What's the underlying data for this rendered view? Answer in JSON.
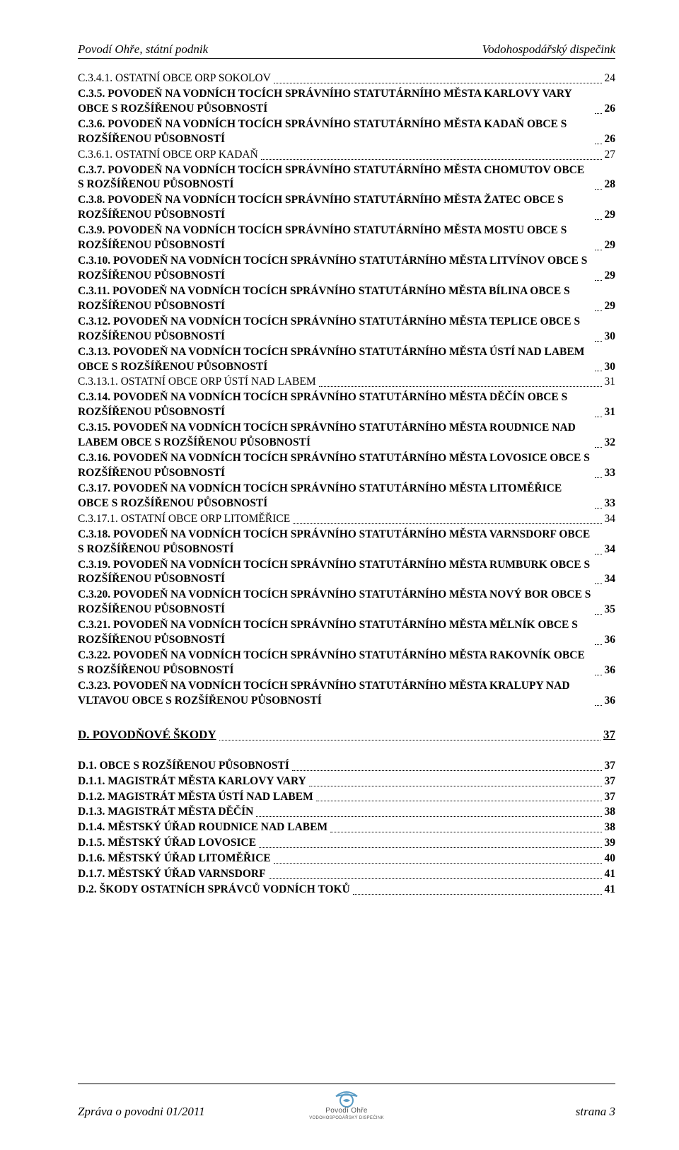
{
  "header": {
    "left": "Povodí Ohře, státní podnik",
    "right": "Vodohospodářský dispečink"
  },
  "footer": {
    "left": "Zpráva o povodni 01/2011",
    "right": "strana 3",
    "logo_color_main": "#5a9bc4",
    "logo_color_sub": "#7a7a7a",
    "logo_line1": "Povodí Ohře",
    "logo_line2": "VODOHOSPODÁŘSKÝ DISPEČINK"
  },
  "toc": [
    {
      "label": "C.3.4.1. OSTATNÍ OBCE ORP SOKOLOV",
      "page": "24",
      "bold": false,
      "smallcaps": true
    },
    {
      "label": "C.3.5. POVODEŇ NA VODNÍCH TOCÍCH SPRÁVNÍHO STATUTÁRNÍHO MĚSTA KARLOVY VARY OBCE S ROZŠÍŘENOU PŮSOBNOSTÍ",
      "page": "26",
      "bold": true,
      "smallcaps": true
    },
    {
      "label": "C.3.6. POVODEŇ NA VODNÍCH TOCÍCH SPRÁVNÍHO STATUTÁRNÍHO MĚSTA KADAŇ OBCE S ROZŠÍŘENOU PŮSOBNOSTÍ",
      "page": "26",
      "bold": true,
      "smallcaps": true
    },
    {
      "label": "C.3.6.1. OSTATNÍ OBCE ORP KADAŇ",
      "page": "27",
      "bold": false,
      "smallcaps": true
    },
    {
      "label": "C.3.7. POVODEŇ NA VODNÍCH TOCÍCH SPRÁVNÍHO STATUTÁRNÍHO MĚSTA CHOMUTOV OBCE S ROZŠÍŘENOU PŮSOBNOSTÍ",
      "page": "28",
      "bold": true,
      "smallcaps": true
    },
    {
      "label": "C.3.8. POVODEŇ NA VODNÍCH TOCÍCH SPRÁVNÍHO STATUTÁRNÍHO MĚSTA ŽATEC OBCE S ROZŠÍŘENOU PŮSOBNOSTÍ",
      "page": "29",
      "bold": true,
      "smallcaps": true
    },
    {
      "label": "C.3.9. POVODEŇ NA VODNÍCH TOCÍCH SPRÁVNÍHO STATUTÁRNÍHO MĚSTA MOSTU OBCE S ROZŠÍŘENOU PŮSOBNOSTÍ",
      "page": "29",
      "bold": true,
      "smallcaps": true
    },
    {
      "label": "C.3.10. POVODEŇ NA VODNÍCH TOCÍCH SPRÁVNÍHO STATUTÁRNÍHO MĚSTA LITVÍNOV OBCE S ROZŠÍŘENOU PŮSOBNOSTÍ",
      "page": "29",
      "bold": true,
      "smallcaps": true
    },
    {
      "label": "C.3.11. POVODEŇ NA VODNÍCH TOCÍCH SPRÁVNÍHO STATUTÁRNÍHO MĚSTA BÍLINA OBCE S ROZŠÍŘENOU PŮSOBNOSTÍ",
      "page": "29",
      "bold": true,
      "smallcaps": true
    },
    {
      "label": "C.3.12. POVODEŇ NA VODNÍCH TOCÍCH SPRÁVNÍHO STATUTÁRNÍHO MĚSTA TEPLICE OBCE S ROZŠÍŘENOU PŮSOBNOSTÍ",
      "page": "30",
      "bold": true,
      "smallcaps": true
    },
    {
      "label": "C.3.13. POVODEŇ NA VODNÍCH TOCÍCH SPRÁVNÍHO STATUTÁRNÍHO MĚSTA ÚSTÍ NAD LABEM OBCE S ROZŠÍŘENOU PŮSOBNOSTÍ",
      "page": "30",
      "bold": true,
      "smallcaps": true
    },
    {
      "label": "C.3.13.1. OSTATNÍ OBCE ORP ÚSTÍ NAD LABEM",
      "page": "31",
      "bold": false,
      "smallcaps": true
    },
    {
      "label": "C.3.14. POVODEŇ NA VODNÍCH TOCÍCH SPRÁVNÍHO STATUTÁRNÍHO MĚSTA DĚČÍN OBCE S ROZŠÍŘENOU PŮSOBNOSTÍ",
      "page": "31",
      "bold": true,
      "smallcaps": true
    },
    {
      "label": "C.3.15. POVODEŇ NA VODNÍCH TOCÍCH SPRÁVNÍHO STATUTÁRNÍHO MĚSTA ROUDNICE NAD LABEM OBCE S ROZŠÍŘENOU PŮSOBNOSTÍ",
      "page": "32",
      "bold": true,
      "smallcaps": true
    },
    {
      "label": "C.3.16. POVODEŇ NA VODNÍCH TOCÍCH SPRÁVNÍHO STATUTÁRNÍHO MĚSTA LOVOSICE OBCE S ROZŠÍŘENOU PŮSOBNOSTÍ",
      "page": "33",
      "bold": true,
      "smallcaps": true
    },
    {
      "label": "C.3.17. POVODEŇ NA VODNÍCH TOCÍCH SPRÁVNÍHO STATUTÁRNÍHO MĚSTA LITOMĚŘICE OBCE S ROZŠÍŘENOU PŮSOBNOSTÍ",
      "page": "33",
      "bold": true,
      "smallcaps": true
    },
    {
      "label": "C.3.17.1. OSTATNÍ OBCE ORP LITOMĚŘICE",
      "page": "34",
      "bold": false,
      "smallcaps": true
    },
    {
      "label": "C.3.18. POVODEŇ NA VODNÍCH TOCÍCH SPRÁVNÍHO STATUTÁRNÍHO MĚSTA VARNSDORF OBCE S ROZŠÍŘENOU PŮSOBNOSTÍ",
      "page": "34",
      "bold": true,
      "smallcaps": true
    },
    {
      "label": "C.3.19. POVODEŇ NA VODNÍCH TOCÍCH SPRÁVNÍHO STATUTÁRNÍHO MĚSTA RUMBURK OBCE S ROZŠÍŘENOU PŮSOBNOSTÍ",
      "page": "34",
      "bold": true,
      "smallcaps": true
    },
    {
      "label": "C.3.20. POVODEŇ NA VODNÍCH TOCÍCH SPRÁVNÍHO STATUTÁRNÍHO MĚSTA NOVÝ BOR OBCE S ROZŠÍŘENOU PŮSOBNOSTÍ",
      "page": "35",
      "bold": true,
      "smallcaps": true
    },
    {
      "label": "C.3.21. POVODEŇ NA VODNÍCH TOCÍCH SPRÁVNÍHO STATUTÁRNÍHO MĚSTA MĚLNÍK OBCE S ROZŠÍŘENOU PŮSOBNOSTÍ",
      "page": "36",
      "bold": true,
      "smallcaps": true
    },
    {
      "label": "C.3.22. POVODEŇ NA VODNÍCH TOCÍCH SPRÁVNÍHO STATUTÁRNÍHO MĚSTA RAKOVNÍK OBCE S ROZŠÍŘENOU PŮSOBNOSTÍ",
      "page": "36",
      "bold": true,
      "smallcaps": true
    },
    {
      "label": "C.3.23. POVODEŇ NA VODNÍCH TOCÍCH SPRÁVNÍHO STATUTÁRNÍHO MĚSTA KRALUPY NAD VLTAVOU OBCE S ROZŠÍŘENOU PŮSOBNOSTÍ",
      "page": "36",
      "bold": true,
      "smallcaps": true
    }
  ],
  "section_d": {
    "label": "D. POVODŇOVÉ ŠKODY",
    "page": "37"
  },
  "toc_d": [
    {
      "label": "D.1. OBCE S ROZŠÍŘENOU PŮSOBNOSTÍ",
      "page": "37",
      "bold": true,
      "smallcaps": true
    },
    {
      "label": "D.1.1. MAGISTRÁT MĚSTA KARLOVY VARY",
      "page": "37",
      "bold": true,
      "smallcaps": true
    },
    {
      "label": "D.1.2. MAGISTRÁT MĚSTA ÚSTÍ NAD LABEM",
      "page": "37",
      "bold": true,
      "smallcaps": true
    },
    {
      "label": "D.1.3. MAGISTRÁT MĚSTA DĚČÍN",
      "page": "38",
      "bold": true,
      "smallcaps": true
    },
    {
      "label": "D.1.4. MĚSTSKÝ ÚŘAD ROUDNICE NAD LABEM",
      "page": "38",
      "bold": true,
      "smallcaps": true
    },
    {
      "label": "D.1.5. MĚSTSKÝ ÚŘAD LOVOSICE",
      "page": "39",
      "bold": true,
      "smallcaps": true
    },
    {
      "label": "D.1.6. MĚSTSKÝ ÚŘAD LITOMĚŘICE",
      "page": "40",
      "bold": true,
      "smallcaps": true
    },
    {
      "label": "D.1.7. MĚSTSKÝ ÚŘAD VARNSDORF",
      "page": "41",
      "bold": true,
      "smallcaps": true
    },
    {
      "label": "D.2. ŠKODY OSTATNÍCH SPRÁVCŮ VODNÍCH TOKŮ",
      "page": "41",
      "bold": true,
      "smallcaps": true
    }
  ]
}
